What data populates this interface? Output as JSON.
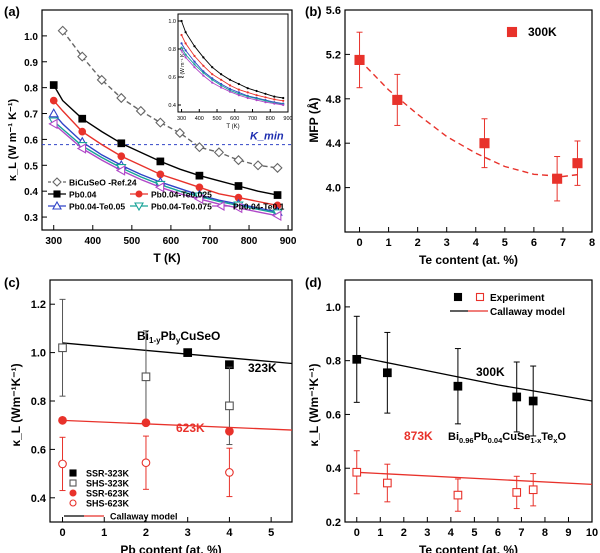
{
  "chart_data": [
    {
      "panel": "(a)",
      "type": "line",
      "xlabel": "T (K)",
      "ylabel": "κ_L (W m⁻¹ K⁻¹)",
      "xlim": [
        270,
        910
      ],
      "ylim": [
        0.25,
        1.1
      ],
      "xticks": [
        300,
        400,
        500,
        600,
        700,
        800,
        900
      ],
      "yticks": [
        0.3,
        0.4,
        0.5,
        0.6,
        0.7,
        0.8,
        0.9,
        1.0
      ],
      "annotation": "K_min",
      "kmin": 0.58,
      "legend": "bottom-left",
      "series": [
        {
          "name": "BiCuSeO -Ref.24",
          "marker": "diamond-open",
          "line": "dashed",
          "color": "#666666",
          "x": [
            323,
            373,
            423,
            473,
            523,
            573,
            623,
            673,
            723,
            773,
            823,
            873
          ],
          "y": [
            1.02,
            0.92,
            0.83,
            0.76,
            0.71,
            0.665,
            0.625,
            0.57,
            0.55,
            0.52,
            0.5,
            0.49
          ]
        },
        {
          "name": "Pb0.04",
          "marker": "square-filled",
          "line": "solid",
          "color": "#000000",
          "x": [
            300,
            323,
            373,
            423,
            473,
            523,
            573,
            623,
            673,
            723,
            773,
            823,
            873
          ],
          "y": [
            0.81,
            0.75,
            0.68,
            0.63,
            0.585,
            0.55,
            0.515,
            0.485,
            0.46,
            0.44,
            0.42,
            0.4,
            0.385
          ]
        },
        {
          "name": "Pb0.04-Te0.025",
          "marker": "circle-filled",
          "line": "solid",
          "color": "#e8322b",
          "x": [
            300,
            323,
            373,
            423,
            473,
            523,
            573,
            623,
            673,
            723,
            773,
            823,
            873
          ],
          "y": [
            0.75,
            0.71,
            0.63,
            0.58,
            0.535,
            0.5,
            0.465,
            0.44,
            0.415,
            0.39,
            0.375,
            0.36,
            0.345
          ]
        },
        {
          "name": "Pb0.04-Te0.05",
          "marker": "triangle-up-open",
          "line": "solid",
          "color": "#3044c8",
          "x": [
            300,
            323,
            373,
            423,
            473,
            523,
            573,
            623,
            673,
            723,
            773,
            823,
            873
          ],
          "y": [
            0.7,
            0.66,
            0.59,
            0.54,
            0.5,
            0.465,
            0.435,
            0.41,
            0.385,
            0.365,
            0.35,
            0.335,
            0.32
          ]
        },
        {
          "name": "Pb0.04-Te0.075",
          "marker": "triangle-down-open",
          "line": "solid",
          "color": "#17a398",
          "x": [
            300,
            323,
            373,
            423,
            473,
            523,
            573,
            623,
            673,
            723,
            773,
            823,
            873
          ],
          "y": [
            0.67,
            0.64,
            0.575,
            0.53,
            0.49,
            0.455,
            0.425,
            0.4,
            0.38,
            0.36,
            0.345,
            0.33,
            0.315
          ]
        },
        {
          "name": "Pb0.04-Te0.1",
          "marker": "triangle-left-open",
          "line": "solid",
          "color": "#b048c8",
          "x": [
            300,
            323,
            373,
            423,
            473,
            523,
            573,
            623,
            673,
            723,
            773,
            823,
            873
          ],
          "y": [
            0.66,
            0.63,
            0.565,
            0.52,
            0.48,
            0.445,
            0.415,
            0.39,
            0.37,
            0.35,
            0.335,
            0.32,
            0.305
          ]
        }
      ],
      "inset": {
        "xlabel": "T (K)",
        "ylabel": "κ (W m⁻¹ K⁻¹)",
        "xticks": [
          300,
          400,
          500,
          600,
          700,
          800,
          900
        ],
        "yticks": [
          0.4,
          0.6,
          0.8,
          1.0
        ],
        "xlim": [
          280,
          900
        ],
        "ylim": [
          0.35,
          1.05
        ],
        "series": [
          {
            "color": "#000000",
            "y": [
              1.0,
              0.92,
              0.82,
              0.74,
              0.67,
              0.62,
              0.58,
              0.55,
              0.52,
              0.5,
              0.48,
              0.46,
              0.45
            ]
          },
          {
            "color": "#e8322b",
            "y": [
              0.9,
              0.84,
              0.75,
              0.68,
              0.62,
              0.58,
              0.54,
              0.51,
              0.49,
              0.47,
              0.455,
              0.44,
              0.43
            ]
          },
          {
            "color": "#3044c8",
            "y": [
              0.84,
              0.79,
              0.71,
              0.64,
              0.59,
              0.55,
              0.515,
              0.49,
              0.465,
              0.45,
              0.435,
              0.42,
              0.41
            ]
          },
          {
            "color": "#17a398",
            "y": [
              0.81,
              0.76,
              0.69,
              0.63,
              0.58,
              0.54,
              0.505,
              0.48,
              0.46,
              0.445,
              0.43,
              0.415,
              0.405
            ]
          },
          {
            "color": "#b048c8",
            "y": [
              0.79,
              0.74,
              0.67,
              0.61,
              0.56,
              0.525,
              0.495,
              0.47,
              0.45,
              0.435,
              0.42,
              0.41,
              0.4
            ]
          }
        ]
      }
    },
    {
      "panel": "(b)",
      "type": "scatter",
      "xlabel": "Te content (at. %)",
      "ylabel": "MFP (Å)",
      "xlim": [
        -0.5,
        8
      ],
      "ylim": [
        3.6,
        5.6
      ],
      "xticks": [
        0,
        1,
        2,
        3,
        4,
        5,
        6,
        7,
        8
      ],
      "yticks": [
        4.0,
        4.4,
        4.8,
        5.2,
        5.6
      ],
      "legend": "top-right",
      "series": [
        {
          "name": "300K",
          "marker": "square-filled",
          "color": "#e8322b",
          "x": [
            0,
            1.3,
            4.3,
            6.8,
            7.5
          ],
          "y": [
            5.15,
            4.79,
            4.4,
            4.08,
            4.22
          ],
          "err": [
            0.25,
            0.23,
            0.22,
            0.2,
            0.2
          ]
        }
      ],
      "fit": {
        "line": "dashed",
        "color": "#e8322b",
        "x": [
          0,
          1,
          2,
          3,
          4,
          5,
          6,
          7,
          7.6
        ],
        "y": [
          5.15,
          4.88,
          4.66,
          4.46,
          4.31,
          4.19,
          4.12,
          4.1,
          4.12
        ]
      }
    },
    {
      "panel": "(c)",
      "type": "scatter",
      "xlabel": "Pb content (at. %)",
      "ylabel": "κ_L (Wm⁻¹K⁻¹)",
      "xlim": [
        -0.3,
        5.5
      ],
      "ylim": [
        0.3,
        1.3
      ],
      "xticks": [
        0,
        1,
        2,
        3,
        4,
        5
      ],
      "yticks": [
        0.4,
        0.6,
        0.8,
        1.0,
        1.2
      ],
      "annotations": {
        "formula": "Bi1-yPbyCuSeO",
        "label_323": "323K",
        "label_623": "623K"
      },
      "legend": "bottom-left",
      "series": [
        {
          "name": "SSR-323K",
          "marker": "square-filled",
          "color": "#000000",
          "x": [
            3,
            4
          ],
          "y": [
            1.0,
            0.95
          ]
        },
        {
          "name": "SHS-323K",
          "marker": "square-open",
          "color": "#555555",
          "x": [
            0,
            2,
            4
          ],
          "y": [
            1.02,
            0.9,
            0.78
          ],
          "err": [
            0.2,
            0.19,
            0.16
          ]
        },
        {
          "name": "SSR-623K",
          "marker": "circle-filled",
          "color": "#e8322b",
          "x": [
            0,
            2,
            4
          ],
          "y": [
            0.72,
            0.71,
            0.675
          ]
        },
        {
          "name": "SHS-623K",
          "marker": "circle-open",
          "color": "#e8322b",
          "x": [
            0,
            2,
            4
          ],
          "y": [
            0.54,
            0.545,
            0.505
          ],
          "err": [
            0.11,
            0.11,
            0.1
          ]
        }
      ],
      "model": {
        "name": "Callaway model",
        "line_323": {
          "x": [
            0,
            5.5
          ],
          "y": [
            1.04,
            0.955
          ]
        },
        "line_623": {
          "x": [
            0,
            5.5
          ],
          "y": [
            0.72,
            0.68
          ]
        }
      }
    },
    {
      "panel": "(d)",
      "type": "scatter",
      "xlabel": "Te content (at. %)",
      "ylabel": "κ_L (Wm⁻¹K⁻¹)",
      "xlim": [
        -0.5,
        10
      ],
      "ylim": [
        0.2,
        1.1
      ],
      "xticks": [
        0,
        1,
        2,
        3,
        4,
        5,
        6,
        7,
        8,
        9,
        10
      ],
      "yticks": [
        0.2,
        0.4,
        0.6,
        0.8,
        1.0
      ],
      "annotations": {
        "label_300": "300K",
        "label_873": "873K",
        "formula": "Bi0.96Pb0.04CuSe1-xTexO"
      },
      "legend": "top-right",
      "series": [
        {
          "name": "Experiment",
          "marker": "square-filled",
          "color": "#000000",
          "x": [
            0,
            1.3,
            4.3,
            6.8,
            7.5
          ],
          "y": [
            0.805,
            0.755,
            0.705,
            0.665,
            0.65
          ],
          "err": [
            0.16,
            0.15,
            0.14,
            0.13,
            0.13
          ]
        },
        {
          "name": "Experiment",
          "marker": "square-open",
          "color": "#e8322b",
          "x": [
            0,
            1.3,
            4.3,
            6.8,
            7.5
          ],
          "y": [
            0.385,
            0.345,
            0.3,
            0.31,
            0.32
          ],
          "err": [
            0.08,
            0.07,
            0.06,
            0.06,
            0.06
          ]
        }
      ],
      "model": {
        "name": "Callaway model",
        "curve_300": {
          "x": [
            0,
            2,
            4,
            6,
            8,
            10
          ],
          "y": [
            0.815,
            0.78,
            0.745,
            0.71,
            0.68,
            0.65
          ]
        },
        "curve_873": {
          "x": [
            0,
            10
          ],
          "y": [
            0.385,
            0.34
          ]
        }
      }
    }
  ]
}
